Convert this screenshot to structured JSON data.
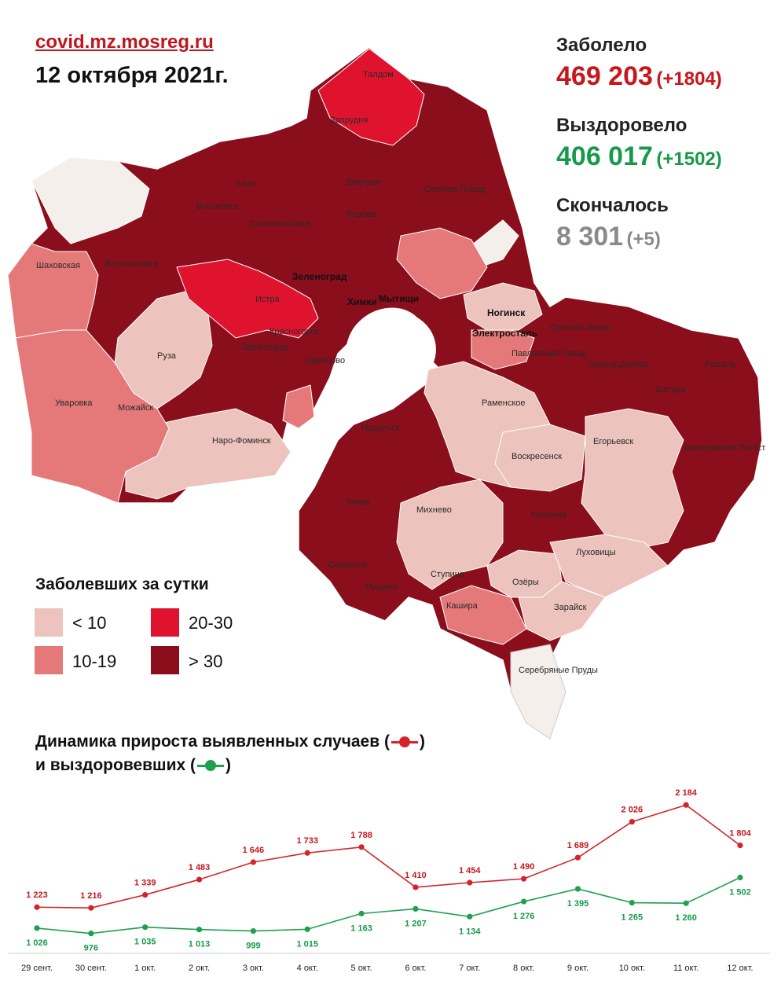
{
  "header": {
    "site": "covid.mz.mosreg.ru",
    "date": "12 октября 2021г."
  },
  "stats": {
    "infected_label": "Заболело",
    "infected_value": "469 203",
    "infected_delta": "(+1804)",
    "recovered_label": "Выздоровело",
    "recovered_value": "406 017",
    "recovered_delta": "(+1502)",
    "deceased_label": "Скончалось",
    "deceased_value": "8 301",
    "deceased_delta": "(+5)"
  },
  "legend": {
    "title": "Заболевших за сутки",
    "items": [
      {
        "label": "< 10",
        "color": "#ecc3bd"
      },
      {
        "label": "10-19",
        "color": "#e5797a"
      },
      {
        "label": "20-30",
        "color": "#e0132f"
      },
      {
        "label": "> 30",
        "color": "#8b0e1c"
      }
    ]
  },
  "map": {
    "places": [
      "Талдом",
      "Запрудня",
      "Клин",
      "Дмитров",
      "Сергиев Посад",
      "Высоковск",
      "Яхрома",
      "Солнечногорск",
      "Шаховская",
      "Волоколамск",
      "Зеленоград",
      "Истра",
      "Мытищи",
      "Ногинск",
      "Красногорск",
      "Орехово-Зуево",
      "Электросталь",
      "Рошаль",
      "Руза",
      "Звенигород",
      "Одинцово",
      "Павловский Посад",
      "Ликино-Дулёво",
      "Шатура",
      "Уваровка",
      "Можайск",
      "Раменское",
      "Наро-Фоминск",
      "Егорьевск",
      "Подольск",
      "Дмитровский Погост",
      "Воскресенск",
      "Чехов",
      "Михнево",
      "Коломна",
      "Луховицы",
      "Серпухов",
      "Ступино",
      "Озёры",
      "Пущино",
      "Кашира",
      "Зарайск",
      "Серебряные Пруды",
      "Химки"
    ]
  },
  "chart": {
    "title_line1": "Динамика прироста выявленных случаев (",
    "title_line1_end": ")",
    "title_line2": "и выздоровевших (",
    "title_line2_end": ")",
    "red_color": "#d4242a",
    "green_color": "#1fa04f"
  },
  "chart_data": {
    "type": "line",
    "categories": [
      "29 сент.",
      "30 сент.",
      "1 окт.",
      "2 окт.",
      "3 окт.",
      "4 окт.",
      "5 окт.",
      "6 окт.",
      "7 окт.",
      "8 окт.",
      "9 окт.",
      "10 окт.",
      "11 окт.",
      "12 окт."
    ],
    "series": [
      {
        "values": [
          1223,
          1216,
          1339,
          1483,
          1646,
          1733,
          1788,
          1410,
          1454,
          1490,
          1689,
          2026,
          2184,
          1804
        ],
        "labels": [
          "1 223",
          "1 216",
          "1 339",
          "1 483",
          "1 646",
          "1 733",
          "1 788",
          "1 410",
          "1 454",
          "1 490",
          "1 689",
          "2 026",
          "2 184",
          "1 804"
        ]
      },
      {
        "values": [
          1026,
          976,
          1035,
          1013,
          999,
          1015,
          1163,
          1207,
          1134,
          1276,
          1395,
          1265,
          1260,
          1502
        ],
        "labels": [
          "1 026",
          "976",
          "1 035",
          "1 013",
          "999",
          "1 015",
          "1 163",
          "1 207",
          "1 134",
          "1 276",
          "1 395",
          "1 265",
          "1 260",
          "1 502"
        ]
      }
    ]
  }
}
